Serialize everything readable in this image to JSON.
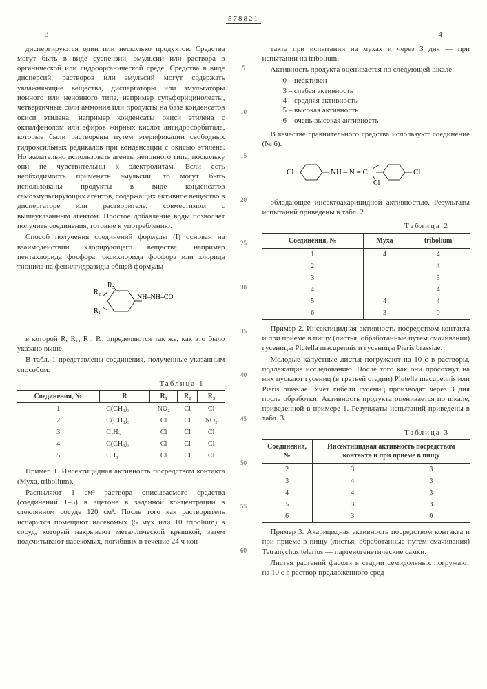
{
  "header": {
    "patent_number": "578821",
    "page_left": "3",
    "page_right": "4"
  },
  "left": {
    "p1": "диспергируются один или несколько продуктов. Средства могут быть в виде суспензии, эмульсии или раствора в органической или гидроорганической среде. Средства в виде дисперсий, растворов или эмульсий могут содержать увлажняющие вещества, диспергаторы или эмульгаторы ионного или неионного типа, например сульфорицинолеаты, четвертичные соли аммония или продукты на базе конденсатов окиси этилена, например конденсаты окиси этилена с октилфенолом или эфиров жирных кислот ангидросорбитала, которые были растворены путем этерификации свободных гидроксильных радикалов при конденсации с окисью этилена. Но желательно использовать агенты неионного типа, поскольку они не чувствительны к электролитам. Если есть необходимость применять эмульсии, то могут быть использованы продукты в виде конденсатов самоэмульгирующих агентов, содержащих активное вещество в диспергаторе или растворителе, совместимом с вышеуказанным агентом. Простое добавление воды позволяет получить соединения, готовые к употреблению.",
    "p2": "Способ получения соединений формулы (I) основан на взаимодействии хлорирующего вещества, например пентахлорида фосфора, оксихлорида фосфора или хлорида тионила на фенилгидразиды общей формулы",
    "p3": "в которой R, R₁, R₂, R₃ определяются так же, как это было указано выше.",
    "p4": "В табл. 1 представлены соединения, полученные указанным способом.",
    "table1_title": "Таблица 1",
    "table1_headers": [
      "Соединения,\n№",
      "R",
      "R₁",
      "R₂",
      "R₃"
    ],
    "table1_rows": [
      [
        "1",
        "C(CH₃)₃",
        "NO₂",
        "Cl",
        "Cl"
      ],
      [
        "2",
        "C(CH₃)₃",
        "Cl",
        "Cl",
        "NO₂"
      ],
      [
        "3",
        "C₂H₅",
        "Cl",
        "Cl",
        "Cl"
      ],
      [
        "4",
        "C(CH₃)₃",
        "Cl",
        "Cl",
        "Cl"
      ],
      [
        "5",
        "CH₃",
        "Cl",
        "Cl",
        "Cl"
      ]
    ],
    "p5": "Пример 1. Инсектицидная активность посредством контакта (Муха, tribolium).",
    "p6": "Распыляют 1 см³ раствора описываемого средства (соединений 1–5) в ацетоне в заданной концентрации в стеклянном сосуде 120 см³. После того как растворитель испарится помещают насекомых (5 мух или 10 tribolium) в сосуд, который накрывают металлической крышкой, затем подсчитывают насекомых, погибших в течение 24 ч кон-"
  },
  "right": {
    "p1": "такта при испытании на мухах и через 3 дня — при испытании на tribolium.",
    "p2": "Активность продукта оценивается по следующей шкале:",
    "scale": [
      "0 – неактивен",
      "3 – слабая активность",
      "4 – средняя активность",
      "5 – высокая активность",
      "6 – очень высокая активность"
    ],
    "p3": "В качестве сравнительного средства используют соединение (№ 6).",
    "p4": "обладающее инсектоакарицидной активностью. Результаты испытаний приведены в табл. 2.",
    "table2_title": "Таблица 2",
    "table2_headers": [
      "Соединения,\n№",
      "Муха",
      "tribolium"
    ],
    "table2_rows": [
      [
        "1",
        "4",
        "4"
      ],
      [
        "2",
        "",
        "4"
      ],
      [
        "3",
        "",
        "5"
      ],
      [
        "4",
        "",
        "4"
      ],
      [
        "5",
        "4",
        "4"
      ],
      [
        "6",
        "3",
        "0"
      ]
    ],
    "p5": "Пример 2. Инсектицидная активность посредством контакта и при приеме в пищу (листья, обработанные путем смачивания) гусеницы Plutella macupennis и гусеницы Pieris brassiae.",
    "p6": "Молодые капустные листья погружают на 10 с в растворы, подлежащие исследованию. После того как они просохнут на них пускают гусениц (в третьей стадии) Plutella macupennis или Pieris brassiae. Учет гибели гусениц производят через 3 дня после обработки. Активность продукта оценивается по шкале, приведенной в примере 1. Результаты испытаний приведены в табл. 3.",
    "table3_title": "Таблица 3",
    "table3_headers": [
      "Соединения,\n№",
      "Инсектицидная активность посредством контакта и при приеме в пищу"
    ],
    "table3_rows": [
      [
        "2",
        "3",
        "3"
      ],
      [
        "3",
        "4",
        "3"
      ],
      [
        "4",
        "4",
        "3"
      ],
      [
        "5",
        "3",
        "3"
      ],
      [
        "6",
        "3",
        "0"
      ]
    ],
    "p7": "Пример 3. Акарицидная активность посредством контакта и при приеме в пищу (листья, обработанные путем смачивания) Tetranychus telarius — партеногенетические самки.",
    "p8": "Листья растений фасоли в стадии семидольных погружают на 10 с в раствор предложенного сред-"
  },
  "line_markers": [
    "5",
    "10",
    "15",
    "20",
    "25",
    "30",
    "35",
    "40",
    "45",
    "50",
    "55",
    "60"
  ]
}
